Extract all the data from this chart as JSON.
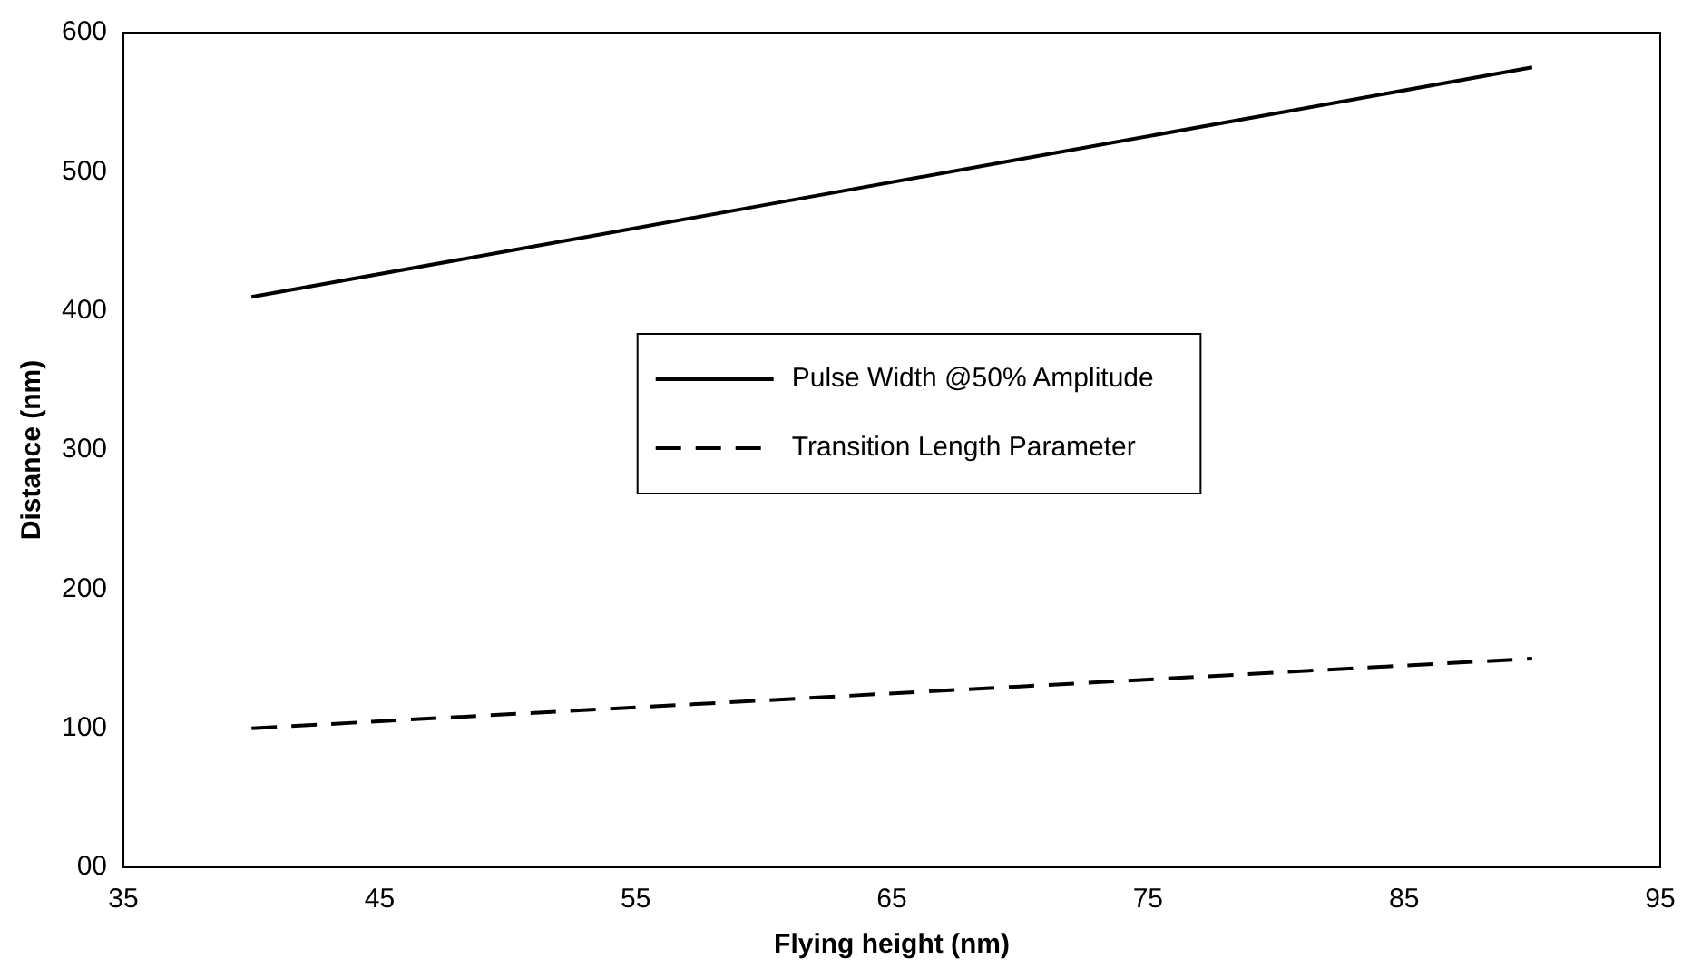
{
  "chart_data": {
    "type": "line",
    "xlabel": "Flying height (nm)",
    "ylabel": "Distance (nm)",
    "x": [
      40,
      50,
      60,
      70,
      80,
      90
    ],
    "series": [
      {
        "name": "Pulse Width @50% Amplitude",
        "color": "#000000",
        "line_style": "solid",
        "values": [
          410,
          443,
          476,
          509,
          542,
          575
        ]
      },
      {
        "name": "Transition Length Parameter",
        "color": "#000000",
        "line_style": "dashed",
        "values": [
          100,
          110,
          120,
          130,
          140,
          150
        ]
      }
    ],
    "xlim": [
      35,
      95
    ],
    "xticks": [
      35,
      45,
      55,
      65,
      75,
      85,
      95
    ],
    "ylim": [
      0,
      600
    ],
    "yticks": [
      {
        "value": 0,
        "label": "00"
      },
      100,
      200,
      300,
      400,
      500,
      600
    ],
    "grid": false,
    "legend": "center",
    "marker": "none"
  }
}
